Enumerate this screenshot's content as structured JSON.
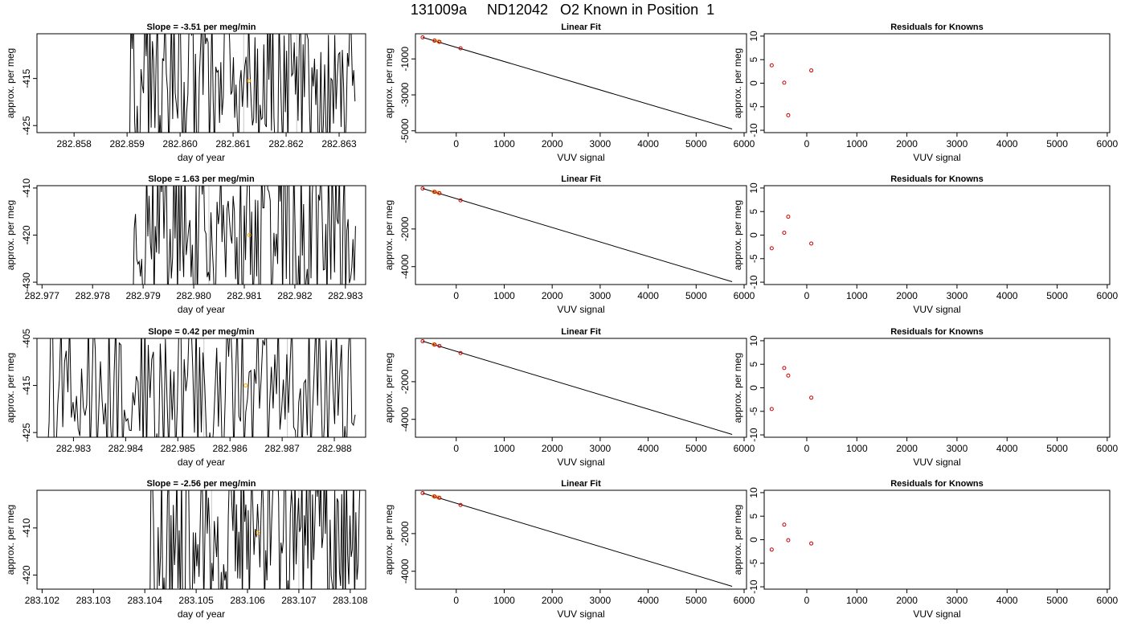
{
  "figure": {
    "title": "131009a     ND12042   O2 Known in Position  1"
  },
  "chart_data": [
    {
      "type": "line",
      "row": 1,
      "title": "Slope =  -3.51  per meg/min",
      "xlabel": "day of year",
      "ylabel": "approx. per meg",
      "xlim": [
        282.8573,
        282.8635
      ],
      "ylim": [
        -426.5,
        -405.5
      ],
      "xticks": [
        "282.858",
        "282.859",
        "282.860",
        "282.861",
        "282.862",
        "282.863"
      ],
      "yticks": [
        "-415",
        "-425"
      ],
      "xtick_values": [
        282.858,
        282.859,
        282.86,
        282.861,
        282.862,
        282.863
      ],
      "ytick_values": [
        -415,
        -425
      ],
      "vlines": [
        282.8612,
        282.8622
      ],
      "marker": {
        "x": 282.8613,
        "y": -415.5,
        "color": "#ffa500"
      },
      "trace_start": 282.859,
      "trace_end": 282.8633,
      "trace_seed": 11
    },
    {
      "type": "scatter",
      "row": 1,
      "title": "Linear Fit",
      "xlabel": "VUV signal",
      "ylabel": "approx. per meg",
      "xlim": [
        -850,
        6050
      ],
      "ylim": [
        -5100,
        400
      ],
      "xticks": [
        "0",
        "1000",
        "2000",
        "3000",
        "4000",
        "5000",
        "6000"
      ],
      "yticks": [
        "-1000",
        "-3000",
        "-5000"
      ],
      "xtick_values": [
        0,
        1000,
        2000,
        3000,
        4000,
        5000,
        6000
      ],
      "ytick_values": [
        -1000,
        -3000,
        -5000
      ],
      "fit_line": [
        [
          -700,
          200
        ],
        [
          5750,
          -4900
        ]
      ],
      "points": [
        {
          "x": -700,
          "y": 200,
          "color": "#cc0000"
        },
        {
          "x": -450,
          "y": 20,
          "color": "#cc0000"
        },
        {
          "x": -350,
          "y": -50,
          "color": "#cc0000"
        },
        {
          "x": 90,
          "y": -410,
          "color": "#cc0000"
        }
      ],
      "highlight": [
        {
          "x": -460,
          "y": 20,
          "color": "#ffa500"
        },
        {
          "x": -370,
          "y": -30,
          "color": "#ffa500"
        }
      ]
    },
    {
      "type": "scatter",
      "row": 1,
      "title": "Residuals for Knowns",
      "xlabel": "VUV signal",
      "ylabel": "approx. per meg",
      "xlim": [
        -850,
        6050
      ],
      "ylim": [
        -10.5,
        10.5
      ],
      "xticks": [
        "0",
        "1000",
        "2000",
        "3000",
        "4000",
        "5000",
        "6000"
      ],
      "yticks": [
        "-10",
        "-5",
        "0",
        "5",
        "10"
      ],
      "xtick_values": [
        0,
        1000,
        2000,
        3000,
        4000,
        5000,
        6000
      ],
      "ytick_values": [
        -10,
        -5,
        0,
        5,
        10
      ],
      "points": [
        {
          "x": -700,
          "y": 3.8,
          "color": "#cc0000"
        },
        {
          "x": -450,
          "y": 0.1,
          "color": "#cc0000"
        },
        {
          "x": -370,
          "y": -6.8,
          "color": "#cc0000"
        },
        {
          "x": 90,
          "y": 2.7,
          "color": "#cc0000"
        }
      ]
    },
    {
      "type": "line",
      "row": 2,
      "title": "Slope =  1.63  per meg/min",
      "xlabel": "day of year",
      "ylabel": "approx. per meg",
      "xlim": [
        282.9769,
        282.9834
      ],
      "ylim": [
        -430.5,
        -409.5
      ],
      "xticks": [
        "282.977",
        "282.978",
        "282.979",
        "282.980",
        "282.981",
        "282.982",
        "282.983"
      ],
      "yticks": [
        "-410",
        "-420",
        "-430"
      ],
      "xtick_values": [
        282.977,
        282.978,
        282.979,
        282.98,
        282.981,
        282.982,
        282.983
      ],
      "ytick_values": [
        -410,
        -420,
        -430
      ],
      "vlines": [
        282.9803,
        282.982
      ],
      "marker": {
        "x": 282.9811,
        "y": -420,
        "color": "#ffa500"
      },
      "trace_start": 282.9788,
      "trace_end": 282.9832,
      "trace_seed": 23
    },
    {
      "type": "scatter",
      "row": 2,
      "title": "Linear Fit",
      "xlabel": "VUV signal",
      "ylabel": "approx. per meg",
      "xlim": [
        -850,
        6050
      ],
      "ylim": [
        -4950,
        300
      ],
      "xticks": [
        "0",
        "1000",
        "2000",
        "3000",
        "4000",
        "5000",
        "6000"
      ],
      "yticks": [
        "-2000",
        "-4000"
      ],
      "xtick_values": [
        0,
        1000,
        2000,
        3000,
        4000,
        5000,
        6000
      ],
      "ytick_values": [
        -2000,
        -4000
      ],
      "fit_line": [
        [
          -700,
          150
        ],
        [
          5750,
          -4800
        ]
      ],
      "points": [
        {
          "x": -700,
          "y": 150,
          "color": "#cc0000"
        },
        {
          "x": -450,
          "y": -30,
          "color": "#cc0000"
        },
        {
          "x": -350,
          "y": -100,
          "color": "#cc0000"
        },
        {
          "x": 90,
          "y": -480,
          "color": "#cc0000"
        }
      ],
      "highlight": [
        {
          "x": -470,
          "y": -20,
          "color": "#ffa500"
        },
        {
          "x": -380,
          "y": -80,
          "color": "#ffa500"
        }
      ]
    },
    {
      "type": "scatter",
      "row": 2,
      "title": "Residuals for Knowns",
      "xlabel": "VUV signal",
      "ylabel": "approx. per meg",
      "xlim": [
        -850,
        6050
      ],
      "ylim": [
        -10.5,
        10.5
      ],
      "xticks": [
        "0",
        "1000",
        "2000",
        "3000",
        "4000",
        "5000",
        "6000"
      ],
      "yticks": [
        "-10",
        "-5",
        "0",
        "5",
        "10"
      ],
      "xtick_values": [
        0,
        1000,
        2000,
        3000,
        4000,
        5000,
        6000
      ],
      "ytick_values": [
        -10,
        -5,
        0,
        5,
        10
      ],
      "points": [
        {
          "x": -700,
          "y": -2.8,
          "color": "#cc0000"
        },
        {
          "x": -450,
          "y": 0.5,
          "color": "#cc0000"
        },
        {
          "x": -370,
          "y": 3.9,
          "color": "#cc0000"
        },
        {
          "x": 90,
          "y": -1.8,
          "color": "#cc0000"
        }
      ]
    },
    {
      "type": "line",
      "row": 3,
      "title": "Slope =  0.42  per meg/min",
      "xlabel": "day of year",
      "ylabel": "approx. per meg",
      "xlim": [
        282.9823,
        282.9886
      ],
      "ylim": [
        -426,
        -405
      ],
      "xticks": [
        "282.983",
        "282.984",
        "282.985",
        "282.986",
        "282.987",
        "282.988"
      ],
      "yticks": [
        "-405",
        "-415",
        "-425"
      ],
      "xtick_values": [
        282.983,
        282.984,
        282.985,
        282.986,
        282.987,
        282.988
      ],
      "ytick_values": [
        -405,
        -415,
        -425
      ],
      "vlines": [
        282.9855,
        282.9871
      ],
      "marker": {
        "x": 282.9863,
        "y": -415,
        "color": "#ffa500"
      },
      "trace_start": 282.9825,
      "trace_end": 282.9884,
      "trace_seed": 37
    },
    {
      "type": "scatter",
      "row": 3,
      "title": "Linear Fit",
      "xlabel": "VUV signal",
      "ylabel": "approx. per meg",
      "xlim": [
        -850,
        6050
      ],
      "ylim": [
        -4950,
        300
      ],
      "xticks": [
        "0",
        "1000",
        "2000",
        "3000",
        "4000",
        "5000",
        "6000"
      ],
      "yticks": [
        "-2000",
        "-4000"
      ],
      "xtick_values": [
        0,
        1000,
        2000,
        3000,
        4000,
        5000,
        6000
      ],
      "ytick_values": [
        -2000,
        -4000
      ],
      "fit_line": [
        [
          -700,
          150
        ],
        [
          5750,
          -4800
        ]
      ],
      "points": [
        {
          "x": -700,
          "y": 150,
          "color": "#cc0000"
        },
        {
          "x": -450,
          "y": -30,
          "color": "#cc0000"
        },
        {
          "x": -350,
          "y": -100,
          "color": "#cc0000"
        },
        {
          "x": 90,
          "y": -480,
          "color": "#cc0000"
        }
      ],
      "highlight": [
        {
          "x": -470,
          "y": -20,
          "color": "#ffa500"
        }
      ]
    },
    {
      "type": "scatter",
      "row": 3,
      "title": "Residuals for Knowns",
      "xlabel": "VUV signal",
      "ylabel": "approx. per meg",
      "xlim": [
        -850,
        6050
      ],
      "ylim": [
        -10.5,
        10.5
      ],
      "xticks": [
        "0",
        "1000",
        "2000",
        "3000",
        "4000",
        "5000",
        "6000"
      ],
      "yticks": [
        "-10",
        "-5",
        "0",
        "5",
        "10"
      ],
      "xtick_values": [
        0,
        1000,
        2000,
        3000,
        4000,
        5000,
        6000
      ],
      "ytick_values": [
        -10,
        -5,
        0,
        5,
        10
      ],
      "points": [
        {
          "x": -700,
          "y": -4.5,
          "color": "#cc0000"
        },
        {
          "x": -450,
          "y": 4.2,
          "color": "#cc0000"
        },
        {
          "x": -370,
          "y": 2.6,
          "color": "#cc0000"
        },
        {
          "x": 90,
          "y": -2.1,
          "color": "#cc0000"
        }
      ]
    },
    {
      "type": "line",
      "row": 4,
      "title": "Slope =  -2.56  per meg/min",
      "xlabel": "day of year",
      "ylabel": "approx. per meg",
      "xlim": [
        283.1019,
        283.1083
      ],
      "ylim": [
        -423,
        -402
      ],
      "xticks": [
        "283.102",
        "283.103",
        "283.104",
        "283.105",
        "283.106",
        "283.107",
        "283.108"
      ],
      "yticks": [
        "-410",
        "-420"
      ],
      "xtick_values": [
        283.102,
        283.103,
        283.104,
        283.105,
        283.106,
        283.107,
        283.108
      ],
      "ytick_values": [
        -410,
        -420
      ],
      "vlines": [
        283.1053,
        283.107
      ],
      "marker": {
        "x": 283.1062,
        "y": -411,
        "color": "#ffa500"
      },
      "trace_start": 283.1041,
      "trace_end": 283.1082,
      "trace_seed": 53
    },
    {
      "type": "scatter",
      "row": 4,
      "title": "Linear Fit",
      "xlabel": "VUV signal",
      "ylabel": "approx. per meg",
      "xlim": [
        -850,
        6050
      ],
      "ylim": [
        -4950,
        300
      ],
      "xticks": [
        "0",
        "1000",
        "2000",
        "3000",
        "4000",
        "5000",
        "6000"
      ],
      "yticks": [
        "-2000",
        "-4000"
      ],
      "xtick_values": [
        0,
        1000,
        2000,
        3000,
        4000,
        5000,
        6000
      ],
      "ytick_values": [
        -2000,
        -4000
      ],
      "fit_line": [
        [
          -700,
          150
        ],
        [
          5750,
          -4800
        ]
      ],
      "points": [
        {
          "x": -700,
          "y": 150,
          "color": "#cc0000"
        },
        {
          "x": -450,
          "y": -30,
          "color": "#cc0000"
        },
        {
          "x": -350,
          "y": -100,
          "color": "#cc0000"
        },
        {
          "x": 90,
          "y": -480,
          "color": "#cc0000"
        }
      ],
      "highlight": [
        {
          "x": -470,
          "y": -20,
          "color": "#ffa500"
        },
        {
          "x": -380,
          "y": -80,
          "color": "#ffa500"
        }
      ]
    },
    {
      "type": "scatter",
      "row": 4,
      "title": "Residuals for Knowns",
      "xlabel": "VUV signal",
      "ylabel": "approx. per meg",
      "xlim": [
        -850,
        6050
      ],
      "ylim": [
        -10.5,
        10.5
      ],
      "xticks": [
        "0",
        "1000",
        "2000",
        "3000",
        "4000",
        "5000",
        "6000"
      ],
      "yticks": [
        "-10",
        "-5",
        "0",
        "5",
        "10"
      ],
      "xtick_values": [
        0,
        1000,
        2000,
        3000,
        4000,
        5000,
        6000
      ],
      "ytick_values": [
        -10,
        -5,
        0,
        5,
        10
      ],
      "points": [
        {
          "x": -700,
          "y": -2.1,
          "color": "#cc0000"
        },
        {
          "x": -450,
          "y": 3.2,
          "color": "#cc0000"
        },
        {
          "x": -370,
          "y": -0.1,
          "color": "#cc0000"
        },
        {
          "x": 90,
          "y": -0.8,
          "color": "#cc0000"
        }
      ]
    }
  ]
}
